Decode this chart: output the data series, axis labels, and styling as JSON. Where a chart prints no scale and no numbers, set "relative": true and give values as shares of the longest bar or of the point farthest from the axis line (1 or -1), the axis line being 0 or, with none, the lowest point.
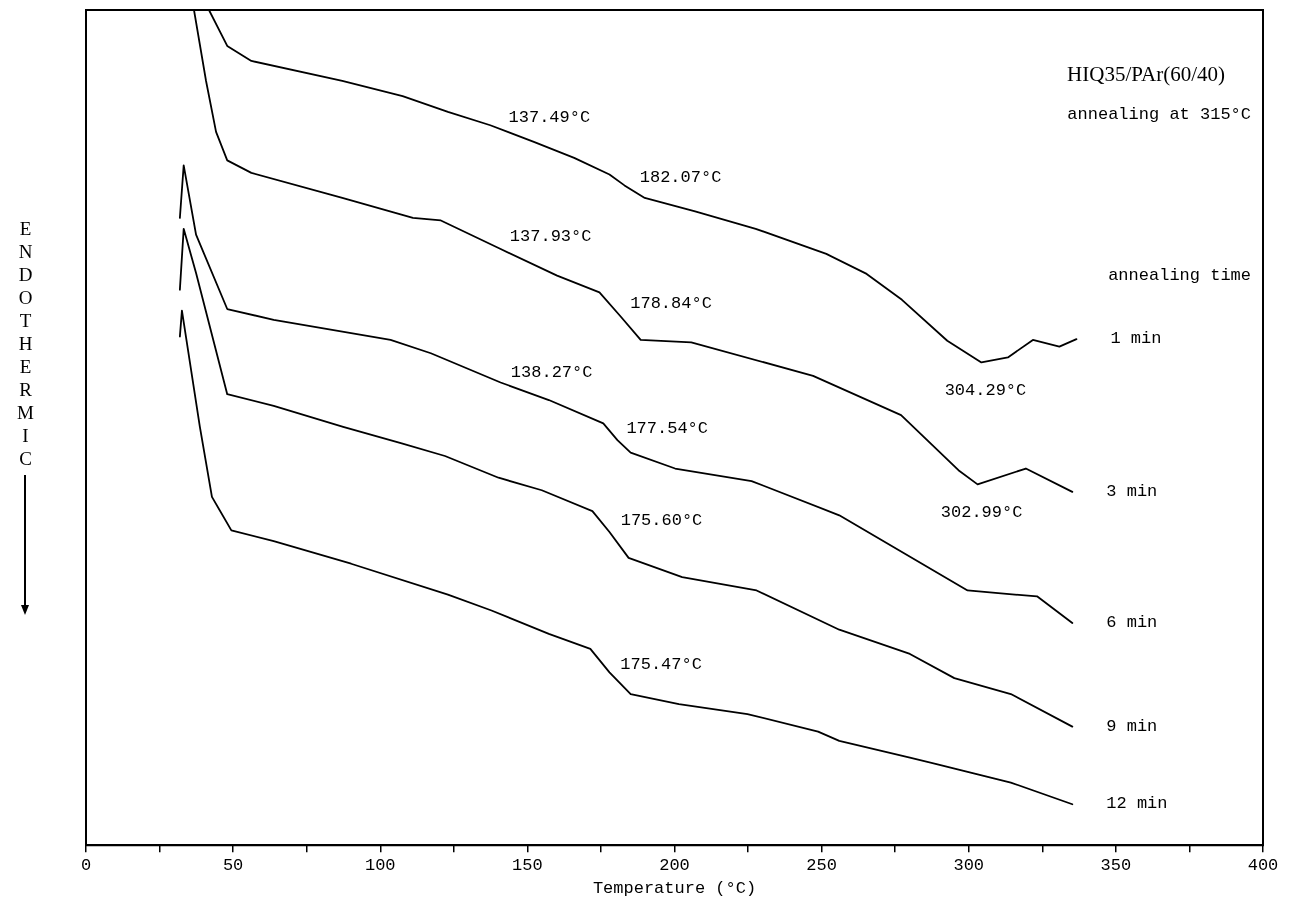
{
  "chart_data": {
    "type": "line",
    "title": "HIQ35/PAr(60/40)",
    "subtitle": "annealing at 315°C",
    "xlabel": "Temperature (°C)",
    "ylabel": "ENDOTHERMIC",
    "legend_title": "annealing time",
    "relative": true,
    "marker": "none",
    "line_style": "solid",
    "tick_labels": "x",
    "xlim": [
      0,
      400
    ],
    "xticks": [
      0,
      {
        "value": 25,
        "label": null
      },
      50,
      {
        "value": 75,
        "label": null
      },
      100,
      {
        "value": 125,
        "label": null
      },
      150,
      {
        "value": 175,
        "label": null
      },
      200,
      {
        "value": 225,
        "label": null
      },
      250,
      {
        "value": 275,
        "label": null
      },
      300,
      {
        "value": 325,
        "label": null
      },
      350,
      {
        "value": 375,
        "label": null
      },
      400
    ],
    "series": [
      {
        "name": "1 min",
        "color": "#000000",
        "x": [
          41.8,
          48.0,
          56.2,
          87.1,
          107.6,
          123.0,
          137.4,
          152.2,
          165.9,
          177.9,
          183.0,
          189.9,
          207.0,
          227.6,
          251.6,
          265.3,
          277.3,
          292.7,
          304.3,
          313.3,
          321.8,
          330.8,
          336.6
        ],
        "values": [
          1.0,
          0.957,
          0.939,
          0.915,
          0.897,
          0.878,
          0.862,
          0.842,
          0.823,
          0.803,
          0.79,
          0.775,
          0.759,
          0.738,
          0.708,
          0.684,
          0.653,
          0.604,
          0.578,
          0.584,
          0.605,
          0.597,
          0.606
        ]
      },
      {
        "name": "3 min",
        "color": "#000000",
        "x": [
          36.7,
          40.8,
          44.2,
          48.0,
          56.2,
          87.1,
          111.1,
          120.6,
          140.2,
          160.1,
          174.5,
          181.7,
          188.5,
          205.7,
          247.1,
          277.0,
          296.5,
          303.0,
          319.4,
          335.2
        ],
        "values": [
          1.0,
          0.915,
          0.854,
          0.82,
          0.805,
          0.775,
          0.751,
          0.748,
          0.715,
          0.682,
          0.662,
          0.633,
          0.605,
          0.602,
          0.562,
          0.515,
          0.449,
          0.432,
          0.451,
          0.423
        ]
      },
      {
        "name": "6 min",
        "color": "#000000",
        "x": [
          31.9,
          33.2,
          37.4,
          48.0,
          63.8,
          103.5,
          117.2,
          140.9,
          157.3,
          175.8,
          180.6,
          185.1,
          200.2,
          226.2,
          256.0,
          299.6,
          315.7,
          323.2,
          335.2
        ],
        "values": [
          0.751,
          0.814,
          0.731,
          0.642,
          0.629,
          0.605,
          0.589,
          0.554,
          0.533,
          0.505,
          0.485,
          0.47,
          0.451,
          0.436,
          0.395,
          0.305,
          0.3,
          0.298,
          0.266
        ]
      },
      {
        "name": "9 min",
        "color": "#000000",
        "x": [
          31.9,
          33.2,
          37.4,
          48.0,
          63.8,
          87.4,
          107.3,
          122.0,
          140.2,
          154.9,
          172.1,
          177.9,
          184.4,
          202.6,
          227.9,
          256.0,
          280.0,
          295.1,
          314.3,
          335.2
        ],
        "values": [
          0.665,
          0.738,
          0.685,
          0.54,
          0.526,
          0.501,
          0.481,
          0.466,
          0.44,
          0.425,
          0.4,
          0.375,
          0.344,
          0.321,
          0.305,
          0.258,
          0.229,
          0.2,
          0.181,
          0.142
        ]
      },
      {
        "name": "12 min",
        "color": "#000000",
        "x": [
          31.9,
          32.6,
          38.7,
          42.8,
          49.4,
          63.8,
          90.1,
          123.0,
          137.8,
          157.3,
          171.4,
          177.9,
          185.1,
          201.5,
          224.8,
          248.8,
          256.0,
          280.0,
          314.3,
          335.2
        ],
        "values": [
          0.609,
          0.64,
          0.501,
          0.417,
          0.377,
          0.364,
          0.337,
          0.3,
          0.281,
          0.253,
          0.235,
          0.207,
          0.181,
          0.169,
          0.157,
          0.136,
          0.125,
          0.105,
          0.075,
          0.049
        ]
      }
    ],
    "annotations": [
      {
        "text": "137.49°C",
        "x": 137.49,
        "y": 0.862
      },
      {
        "text": "182.07°C",
        "x": 182.07,
        "y": 0.79
      },
      {
        "text": "137.93°C",
        "x": 137.93,
        "y": 0.72
      },
      {
        "text": "178.84°C",
        "x": 178.84,
        "y": 0.64
      },
      {
        "text": "304.29°C",
        "x": 304.29,
        "y": 0.578
      },
      {
        "text": "138.27°C",
        "x": 138.27,
        "y": 0.557
      },
      {
        "text": "177.54°C",
        "x": 177.54,
        "y": 0.49
      },
      {
        "text": "302.99°C",
        "x": 302.99,
        "y": 0.432
      },
      {
        "text": "175.60°C",
        "x": 175.6,
        "y": 0.38
      },
      {
        "text": "175.47°C",
        "x": 175.47,
        "y": 0.207
      }
    ]
  }
}
